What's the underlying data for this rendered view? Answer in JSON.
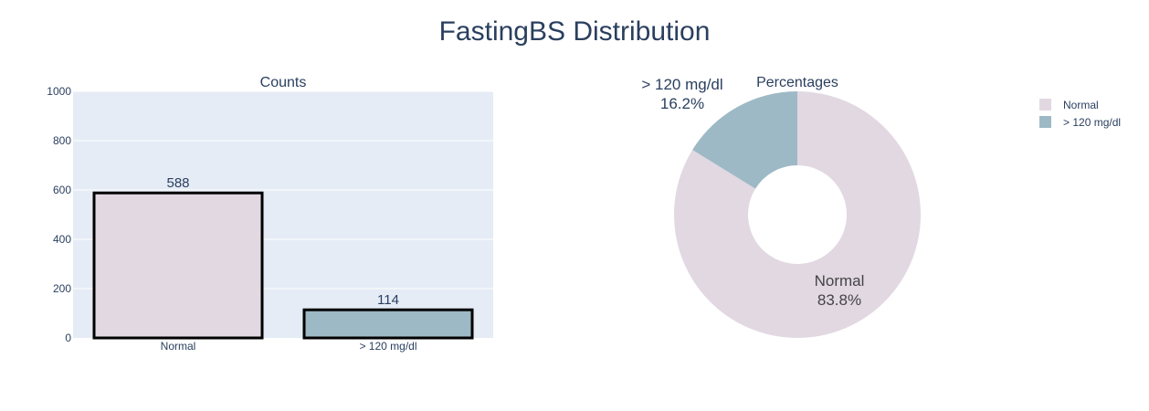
{
  "title": "FastingBS Distribution",
  "colors": {
    "normal": "#e2d8e2",
    "high": "#9eb9c6",
    "plot_bg": "#e5ecf6",
    "grid": "#ffffff",
    "bar_outline": "#000000",
    "text": "#2a3f5f"
  },
  "chart_data": [
    {
      "type": "bar",
      "title": "Counts",
      "categories": [
        "Normal",
        "> 120 mg/dl"
      ],
      "values": [
        588,
        114
      ],
      "data_labels": [
        "588",
        "114"
      ],
      "ylim": [
        0,
        1000
      ],
      "y_ticks": [
        0,
        200,
        400,
        600,
        800,
        1000
      ],
      "y_tick_labels": [
        "0",
        "200",
        "400",
        "600",
        "800",
        "1000"
      ],
      "grid": true
    },
    {
      "type": "pie",
      "title": "Percentages",
      "hole": true,
      "labels": [
        "Normal",
        "> 120 mg/dl"
      ],
      "values": [
        83.8,
        16.2
      ],
      "percent_labels": [
        "83.8%",
        "16.2%"
      ],
      "legend": {
        "placement": "right",
        "entries": [
          "Normal",
          "> 120 mg/dl"
        ]
      }
    }
  ]
}
